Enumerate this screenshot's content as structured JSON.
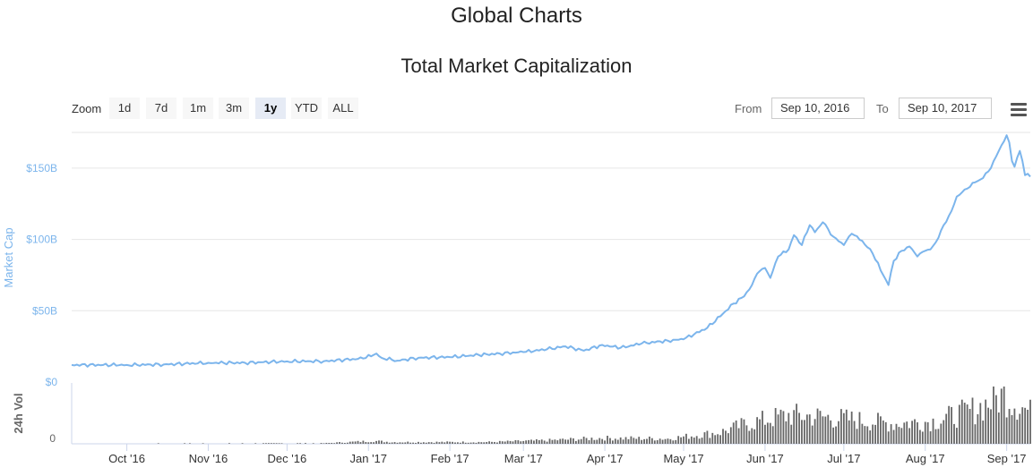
{
  "page": {
    "title": "Global Charts"
  },
  "toolbar": {
    "zoom_label": "Zoom",
    "zoom_buttons": [
      "1d",
      "7d",
      "1m",
      "3m",
      "1y",
      "YTD",
      "ALL"
    ],
    "active_zoom": "1y",
    "from_label": "From",
    "from_value": "Sep 10, 2016",
    "to_label": "To",
    "to_value": "Sep 10, 2017",
    "menu_icon": "hamburger-menu-icon"
  },
  "chart_data": {
    "type": "area",
    "title": "Total Market Capitalization",
    "ylabel": "Market Cap",
    "volume_label": "24h Vol",
    "volume_tick": "0",
    "line_color": "#7cb5ec",
    "bar_color": "#666666",
    "ylim": [
      0,
      175
    ],
    "yticks": [
      {
        "value": 0,
        "label": "$0"
      },
      {
        "value": 50,
        "label": "$50B"
      },
      {
        "value": 100,
        "label": "$100B"
      },
      {
        "value": 150,
        "label": "$150B"
      }
    ],
    "xticks": [
      {
        "date": "2016-10-01",
        "label": "Oct '16"
      },
      {
        "date": "2016-11-01",
        "label": "Nov '16"
      },
      {
        "date": "2016-12-01",
        "label": "Dec '16"
      },
      {
        "date": "2017-01-01",
        "label": "Jan '17"
      },
      {
        "date": "2017-02-01",
        "label": "Feb '17"
      },
      {
        "date": "2017-03-01",
        "label": "Mar '17"
      },
      {
        "date": "2017-04-01",
        "label": "Apr '17"
      },
      {
        "date": "2017-05-01",
        "label": "May '17"
      },
      {
        "date": "2017-06-01",
        "label": "Jun '17"
      },
      {
        "date": "2017-07-01",
        "label": "Jul '17"
      },
      {
        "date": "2017-08-01",
        "label": "Aug '17"
      },
      {
        "date": "2017-09-01",
        "label": "Sep '17"
      }
    ],
    "x_range": [
      "2016-09-10",
      "2017-09-10"
    ],
    "series": [
      {
        "values": [
          [
            "2016-09-10",
            12
          ],
          [
            "2016-10-01",
            12
          ],
          [
            "2016-10-15",
            12.3
          ],
          [
            "2016-11-01",
            13.5
          ],
          [
            "2016-11-15",
            13.5
          ],
          [
            "2016-12-01",
            14.5
          ],
          [
            "2016-12-15",
            14.6
          ],
          [
            "2016-12-30",
            16.5
          ],
          [
            "2017-01-04",
            20
          ],
          [
            "2017-01-06",
            17
          ],
          [
            "2017-01-12",
            15
          ],
          [
            "2017-01-20",
            17
          ],
          [
            "2017-02-01",
            17.5
          ],
          [
            "2017-02-12",
            19
          ],
          [
            "2017-02-20",
            20
          ],
          [
            "2017-03-01",
            21
          ],
          [
            "2017-03-10",
            23
          ],
          [
            "2017-03-17",
            25
          ],
          [
            "2017-03-24",
            22
          ],
          [
            "2017-03-31",
            26
          ],
          [
            "2017-04-07",
            24
          ],
          [
            "2017-04-15",
            27
          ],
          [
            "2017-04-25",
            29
          ],
          [
            "2017-05-01",
            30
          ],
          [
            "2017-05-10",
            38
          ],
          [
            "2017-05-16",
            48
          ],
          [
            "2017-05-20",
            55
          ],
          [
            "2017-05-24",
            60
          ],
          [
            "2017-05-27",
            68
          ],
          [
            "2017-05-29",
            76
          ],
          [
            "2017-06-01",
            80
          ],
          [
            "2017-06-03",
            73
          ],
          [
            "2017-06-06",
            88
          ],
          [
            "2017-06-10",
            93
          ],
          [
            "2017-06-12",
            103
          ],
          [
            "2017-06-15",
            96
          ],
          [
            "2017-06-18",
            110
          ],
          [
            "2017-06-20",
            105
          ],
          [
            "2017-06-23",
            112
          ],
          [
            "2017-06-27",
            102
          ],
          [
            "2017-07-01",
            96
          ],
          [
            "2017-07-04",
            104
          ],
          [
            "2017-07-08",
            99
          ],
          [
            "2017-07-12",
            90
          ],
          [
            "2017-07-16",
            75
          ],
          [
            "2017-07-18",
            68
          ],
          [
            "2017-07-20",
            85
          ],
          [
            "2017-07-23",
            92
          ],
          [
            "2017-07-26",
            95
          ],
          [
            "2017-07-29",
            88
          ],
          [
            "2017-08-01",
            92
          ],
          [
            "2017-08-03",
            93
          ],
          [
            "2017-08-05",
            98
          ],
          [
            "2017-08-08",
            110
          ],
          [
            "2017-08-11",
            120
          ],
          [
            "2017-08-13",
            130
          ],
          [
            "2017-08-16",
            135
          ],
          [
            "2017-08-20",
            140
          ],
          [
            "2017-08-23",
            143
          ],
          [
            "2017-08-26",
            150
          ],
          [
            "2017-08-29",
            162
          ],
          [
            "2017-09-01",
            173
          ],
          [
            "2017-09-02",
            168
          ],
          [
            "2017-09-03",
            155
          ],
          [
            "2017-09-04",
            151
          ],
          [
            "2017-09-06",
            162
          ],
          [
            "2017-09-07",
            155
          ],
          [
            "2017-09-08",
            145
          ],
          [
            "2017-09-09",
            146
          ],
          [
            "2017-09-10",
            144
          ]
        ]
      }
    ],
    "volume_profile": [
      [
        "2016-09-10",
        0.005
      ],
      [
        "2016-12-15",
        0.01
      ],
      [
        "2017-01-03",
        0.05
      ],
      [
        "2017-01-10",
        0.03
      ],
      [
        "2017-02-15",
        0.03
      ],
      [
        "2017-03-10",
        0.06
      ],
      [
        "2017-03-31",
        0.1
      ],
      [
        "2017-04-25",
        0.09
      ],
      [
        "2017-05-15",
        0.2
      ],
      [
        "2017-05-25",
        0.35
      ],
      [
        "2017-06-10",
        0.5
      ],
      [
        "2017-06-20",
        0.48
      ],
      [
        "2017-07-05",
        0.42
      ],
      [
        "2017-07-20",
        0.35
      ],
      [
        "2017-08-05",
        0.4
      ],
      [
        "2017-08-20",
        0.6
      ],
      [
        "2017-08-31",
        0.85
      ],
      [
        "2017-09-10",
        0.55
      ]
    ]
  }
}
